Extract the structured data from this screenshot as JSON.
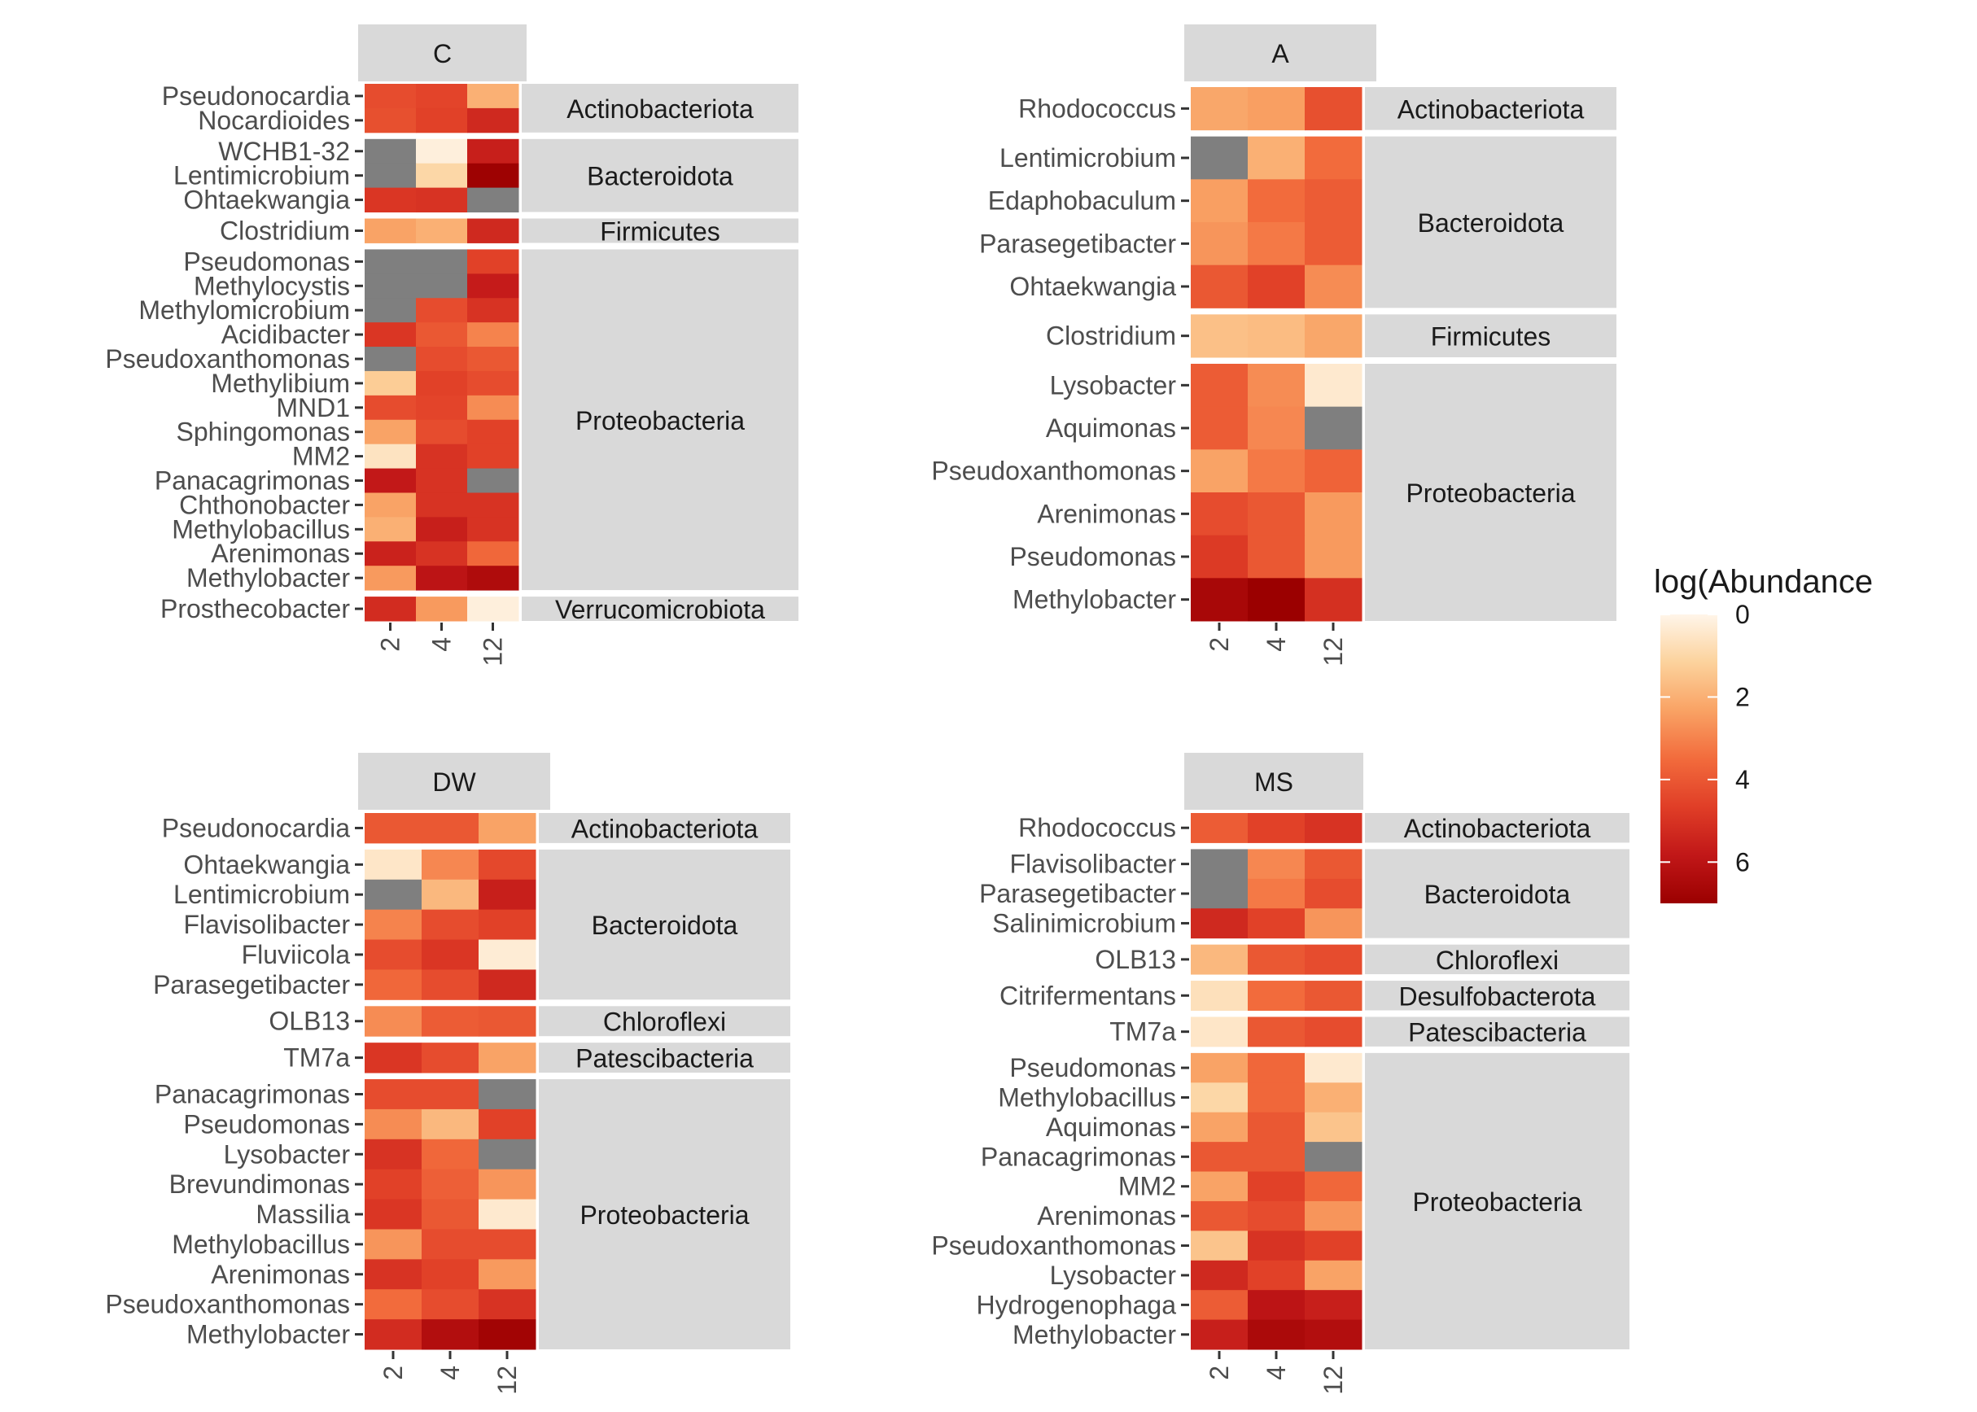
{
  "chart_data": [
    {
      "type": "heatmap",
      "panel": "C",
      "x": [
        "2",
        "4",
        "12"
      ],
      "groups": [
        {
          "label": "Actinobacteriota",
          "rows": [
            {
              "name": "Pseudonocardia",
              "values": [
                4.3,
                4.5,
                2.0
              ]
            },
            {
              "name": "Nocardioides",
              "values": [
                4.2,
                4.6,
                5.3
              ]
            }
          ]
        },
        {
          "label": "Bacteroidota",
          "rows": [
            {
              "name": "WCHB1-32",
              "values": [
                null,
                0.2,
                5.6
              ]
            },
            {
              "name": "Lentimicrobium",
              "values": [
                null,
                1.0,
                6.9
              ]
            },
            {
              "name": "Ohtaekwangia",
              "values": [
                4.9,
                5.0,
                null
              ]
            }
          ]
        },
        {
          "label": "Firmicutes",
          "rows": [
            {
              "name": "Clostridium",
              "values": [
                2.3,
                2.0,
                5.3
              ]
            }
          ]
        },
        {
          "label": "Proteobacteria",
          "rows": [
            {
              "name": "Pseudomonas",
              "values": [
                null,
                null,
                4.6
              ]
            },
            {
              "name": "Methylocystis",
              "values": [
                null,
                null,
                5.7
              ]
            },
            {
              "name": "Methylomicrobium",
              "values": [
                null,
                4.3,
                5.0
              ]
            },
            {
              "name": "Acidibacter",
              "values": [
                4.9,
                4.0,
                3.0
              ]
            },
            {
              "name": "Pseudoxanthomonas",
              "values": [
                null,
                4.3,
                4.0
              ]
            },
            {
              "name": "Methylibium",
              "values": [
                1.3,
                4.6,
                4.3
              ]
            },
            {
              "name": "MND1",
              "values": [
                4.3,
                4.5,
                2.8
              ]
            },
            {
              "name": "Sphingomonas",
              "values": [
                2.3,
                4.3,
                4.6
              ]
            },
            {
              "name": "MM2",
              "values": [
                0.6,
                5.0,
                4.6
              ]
            },
            {
              "name": "Panacagrimonas",
              "values": [
                5.8,
                5.0,
                null
              ]
            },
            {
              "name": "Chthonobacter",
              "values": [
                2.3,
                5.0,
                5.0
              ]
            },
            {
              "name": "Methylobacillus",
              "values": [
                2.0,
                5.6,
                5.0
              ]
            },
            {
              "name": "Arenimonas",
              "values": [
                5.5,
                5.0,
                3.6
              ]
            },
            {
              "name": "Methylobacter",
              "values": [
                2.5,
                6.0,
                6.4
              ]
            }
          ]
        },
        {
          "label": "Verrucomicrobiota",
          "rows": [
            {
              "name": "Prosthecobacter",
              "values": [
                5.2,
                2.5,
                0.2
              ]
            }
          ]
        }
      ]
    },
    {
      "type": "heatmap",
      "panel": "A",
      "x": [
        "2",
        "4",
        "12"
      ],
      "groups": [
        {
          "label": "Actinobacteriota",
          "rows": [
            {
              "name": "Rhodococcus",
              "values": [
                2.2,
                2.4,
                4.2
              ]
            }
          ]
        },
        {
          "label": "Bacteroidota",
          "rows": [
            {
              "name": "Lentimicrobium",
              "values": [
                null,
                2.0,
                3.5
              ]
            },
            {
              "name": "Edaphobaculum",
              "values": [
                2.4,
                3.5,
                3.9
              ]
            },
            {
              "name": "Parasegetibacter",
              "values": [
                2.6,
                3.2,
                3.9
              ]
            },
            {
              "name": "Ohtaekwangia",
              "values": [
                4.0,
                4.6,
                2.8
              ]
            }
          ]
        },
        {
          "label": "Firmicutes",
          "rows": [
            {
              "name": "Clostridium",
              "values": [
                1.6,
                1.7,
                2.2
              ]
            }
          ]
        },
        {
          "label": "Proteobacteria",
          "rows": [
            {
              "name": "Lysobacter",
              "values": [
                3.9,
                2.8,
                0.4
              ]
            },
            {
              "name": "Aquimonas",
              "values": [
                3.9,
                2.9,
                null
              ]
            },
            {
              "name": "Pseudoxanthomonas",
              "values": [
                2.3,
                3.2,
                3.7
              ]
            },
            {
              "name": "Arenimonas",
              "values": [
                4.3,
                4.0,
                2.5
              ]
            },
            {
              "name": "Pseudomonas",
              "values": [
                4.8,
                4.0,
                2.5
              ]
            },
            {
              "name": "Methylobacter",
              "values": [
                6.6,
                7.0,
                5.1
              ]
            }
          ]
        }
      ]
    },
    {
      "type": "heatmap",
      "panel": "DW",
      "x": [
        "2",
        "4",
        "12"
      ],
      "groups": [
        {
          "label": "Actinobacteriota",
          "rows": [
            {
              "name": "Pseudonocardia",
              "values": [
                4.0,
                4.0,
                2.3
              ]
            }
          ]
        },
        {
          "label": "Bacteroidota",
          "rows": [
            {
              "name": "Ohtaekwangia",
              "values": [
                0.5,
                2.9,
                4.4
              ]
            },
            {
              "name": "Lentimicrobium",
              "values": [
                null,
                1.8,
                5.6
              ]
            },
            {
              "name": "Flavisolibacter",
              "values": [
                3.0,
                4.3,
                4.6
              ]
            },
            {
              "name": "Fluviicola",
              "values": [
                4.3,
                4.9,
                0.3
              ]
            },
            {
              "name": "Parasegetibacter",
              "values": [
                3.6,
                4.3,
                5.3
              ]
            }
          ]
        },
        {
          "label": "Chloroflexi",
          "rows": [
            {
              "name": "OLB13",
              "values": [
                2.8,
                3.9,
                4.0
              ]
            }
          ]
        },
        {
          "label": "Patescibacteria",
          "rows": [
            {
              "name": "TM7a",
              "values": [
                4.9,
                4.3,
                2.3
              ]
            }
          ]
        },
        {
          "label": "Proteobacteria",
          "rows": [
            {
              "name": "Panacagrimonas",
              "values": [
                4.3,
                4.3,
                null
              ]
            },
            {
              "name": "Pseudomonas",
              "values": [
                2.8,
                1.8,
                4.6
              ]
            },
            {
              "name": "Lysobacter",
              "values": [
                5.0,
                3.6,
                null
              ]
            },
            {
              "name": "Brevundimonas",
              "values": [
                4.6,
                3.8,
                2.6
              ]
            },
            {
              "name": "Massilia",
              "values": [
                4.9,
                4.0,
                0.4
              ]
            },
            {
              "name": "Methylobacillus",
              "values": [
                2.6,
                4.3,
                4.3
              ]
            },
            {
              "name": "Arenimonas",
              "values": [
                5.0,
                4.6,
                2.5
              ]
            },
            {
              "name": "Pseudoxanthomonas",
              "values": [
                3.5,
                4.3,
                5.0
              ]
            },
            {
              "name": "Methylobacter",
              "values": [
                5.2,
                6.3,
                6.8
              ]
            }
          ]
        }
      ]
    },
    {
      "type": "heatmap",
      "panel": "MS",
      "x": [
        "2",
        "4",
        "12"
      ],
      "groups": [
        {
          "label": "Actinobacteriota",
          "rows": [
            {
              "name": "Rhodococcus",
              "values": [
                3.9,
                4.6,
                5.0
              ]
            }
          ]
        },
        {
          "label": "Bacteroidota",
          "rows": [
            {
              "name": "Flavisolibacter",
              "values": [
                null,
                2.9,
                4.0
              ]
            },
            {
              "name": "Parasegetibacter",
              "values": [
                null,
                3.2,
                4.3
              ]
            },
            {
              "name": "Salinimicrobium",
              "values": [
                5.3,
                4.6,
                2.6
              ]
            }
          ]
        },
        {
          "label": "Chloroflexi",
          "rows": [
            {
              "name": "OLB13",
              "values": [
                1.8,
                4.0,
                4.3
              ]
            }
          ]
        },
        {
          "label": "Desulfobacterota",
          "rows": [
            {
              "name": "Citrifermentans",
              "values": [
                0.7,
                3.5,
                4.0
              ]
            }
          ]
        },
        {
          "label": "Patescibacteria",
          "rows": [
            {
              "name": "TM7a",
              "values": [
                0.5,
                4.0,
                4.3
              ]
            }
          ]
        },
        {
          "label": "Proteobacteria",
          "rows": [
            {
              "name": "Pseudomonas",
              "values": [
                2.3,
                3.6,
                0.4
              ]
            },
            {
              "name": "Methylobacillus",
              "values": [
                1.0,
                3.6,
                2.0
              ]
            },
            {
              "name": "Aquimonas",
              "values": [
                2.3,
                4.0,
                1.5
              ]
            },
            {
              "name": "Panacagrimonas",
              "values": [
                4.0,
                4.0,
                null
              ]
            },
            {
              "name": "MM2",
              "values": [
                2.3,
                4.6,
                3.6
              ]
            },
            {
              "name": "Arenimonas",
              "values": [
                4.0,
                4.3,
                2.6
              ]
            },
            {
              "name": "Pseudoxanthomonas",
              "values": [
                1.5,
                5.0,
                4.6
              ]
            },
            {
              "name": "Lysobacter",
              "values": [
                5.3,
                4.6,
                2.3
              ]
            },
            {
              "name": "Hydrogenophaga",
              "values": [
                3.9,
                6.0,
                5.6
              ]
            },
            {
              "name": "Methylobacter",
              "values": [
                5.6,
                6.5,
                6.3
              ]
            }
          ]
        }
      ]
    }
  ],
  "legend": {
    "title": "log(Abundance",
    "ticks": [
      "0",
      "2",
      "4",
      "6"
    ],
    "tick_values": [
      0,
      2,
      4,
      6
    ],
    "range": [
      0,
      7
    ]
  },
  "colors": {
    "na": "#7f7f7f",
    "strip_bg": "#d9d9d9",
    "scale": [
      "#fff5e9",
      "#fcd29c",
      "#f9a264",
      "#f26b3c",
      "#e03e27",
      "#c11718",
      "#9b0000"
    ]
  }
}
